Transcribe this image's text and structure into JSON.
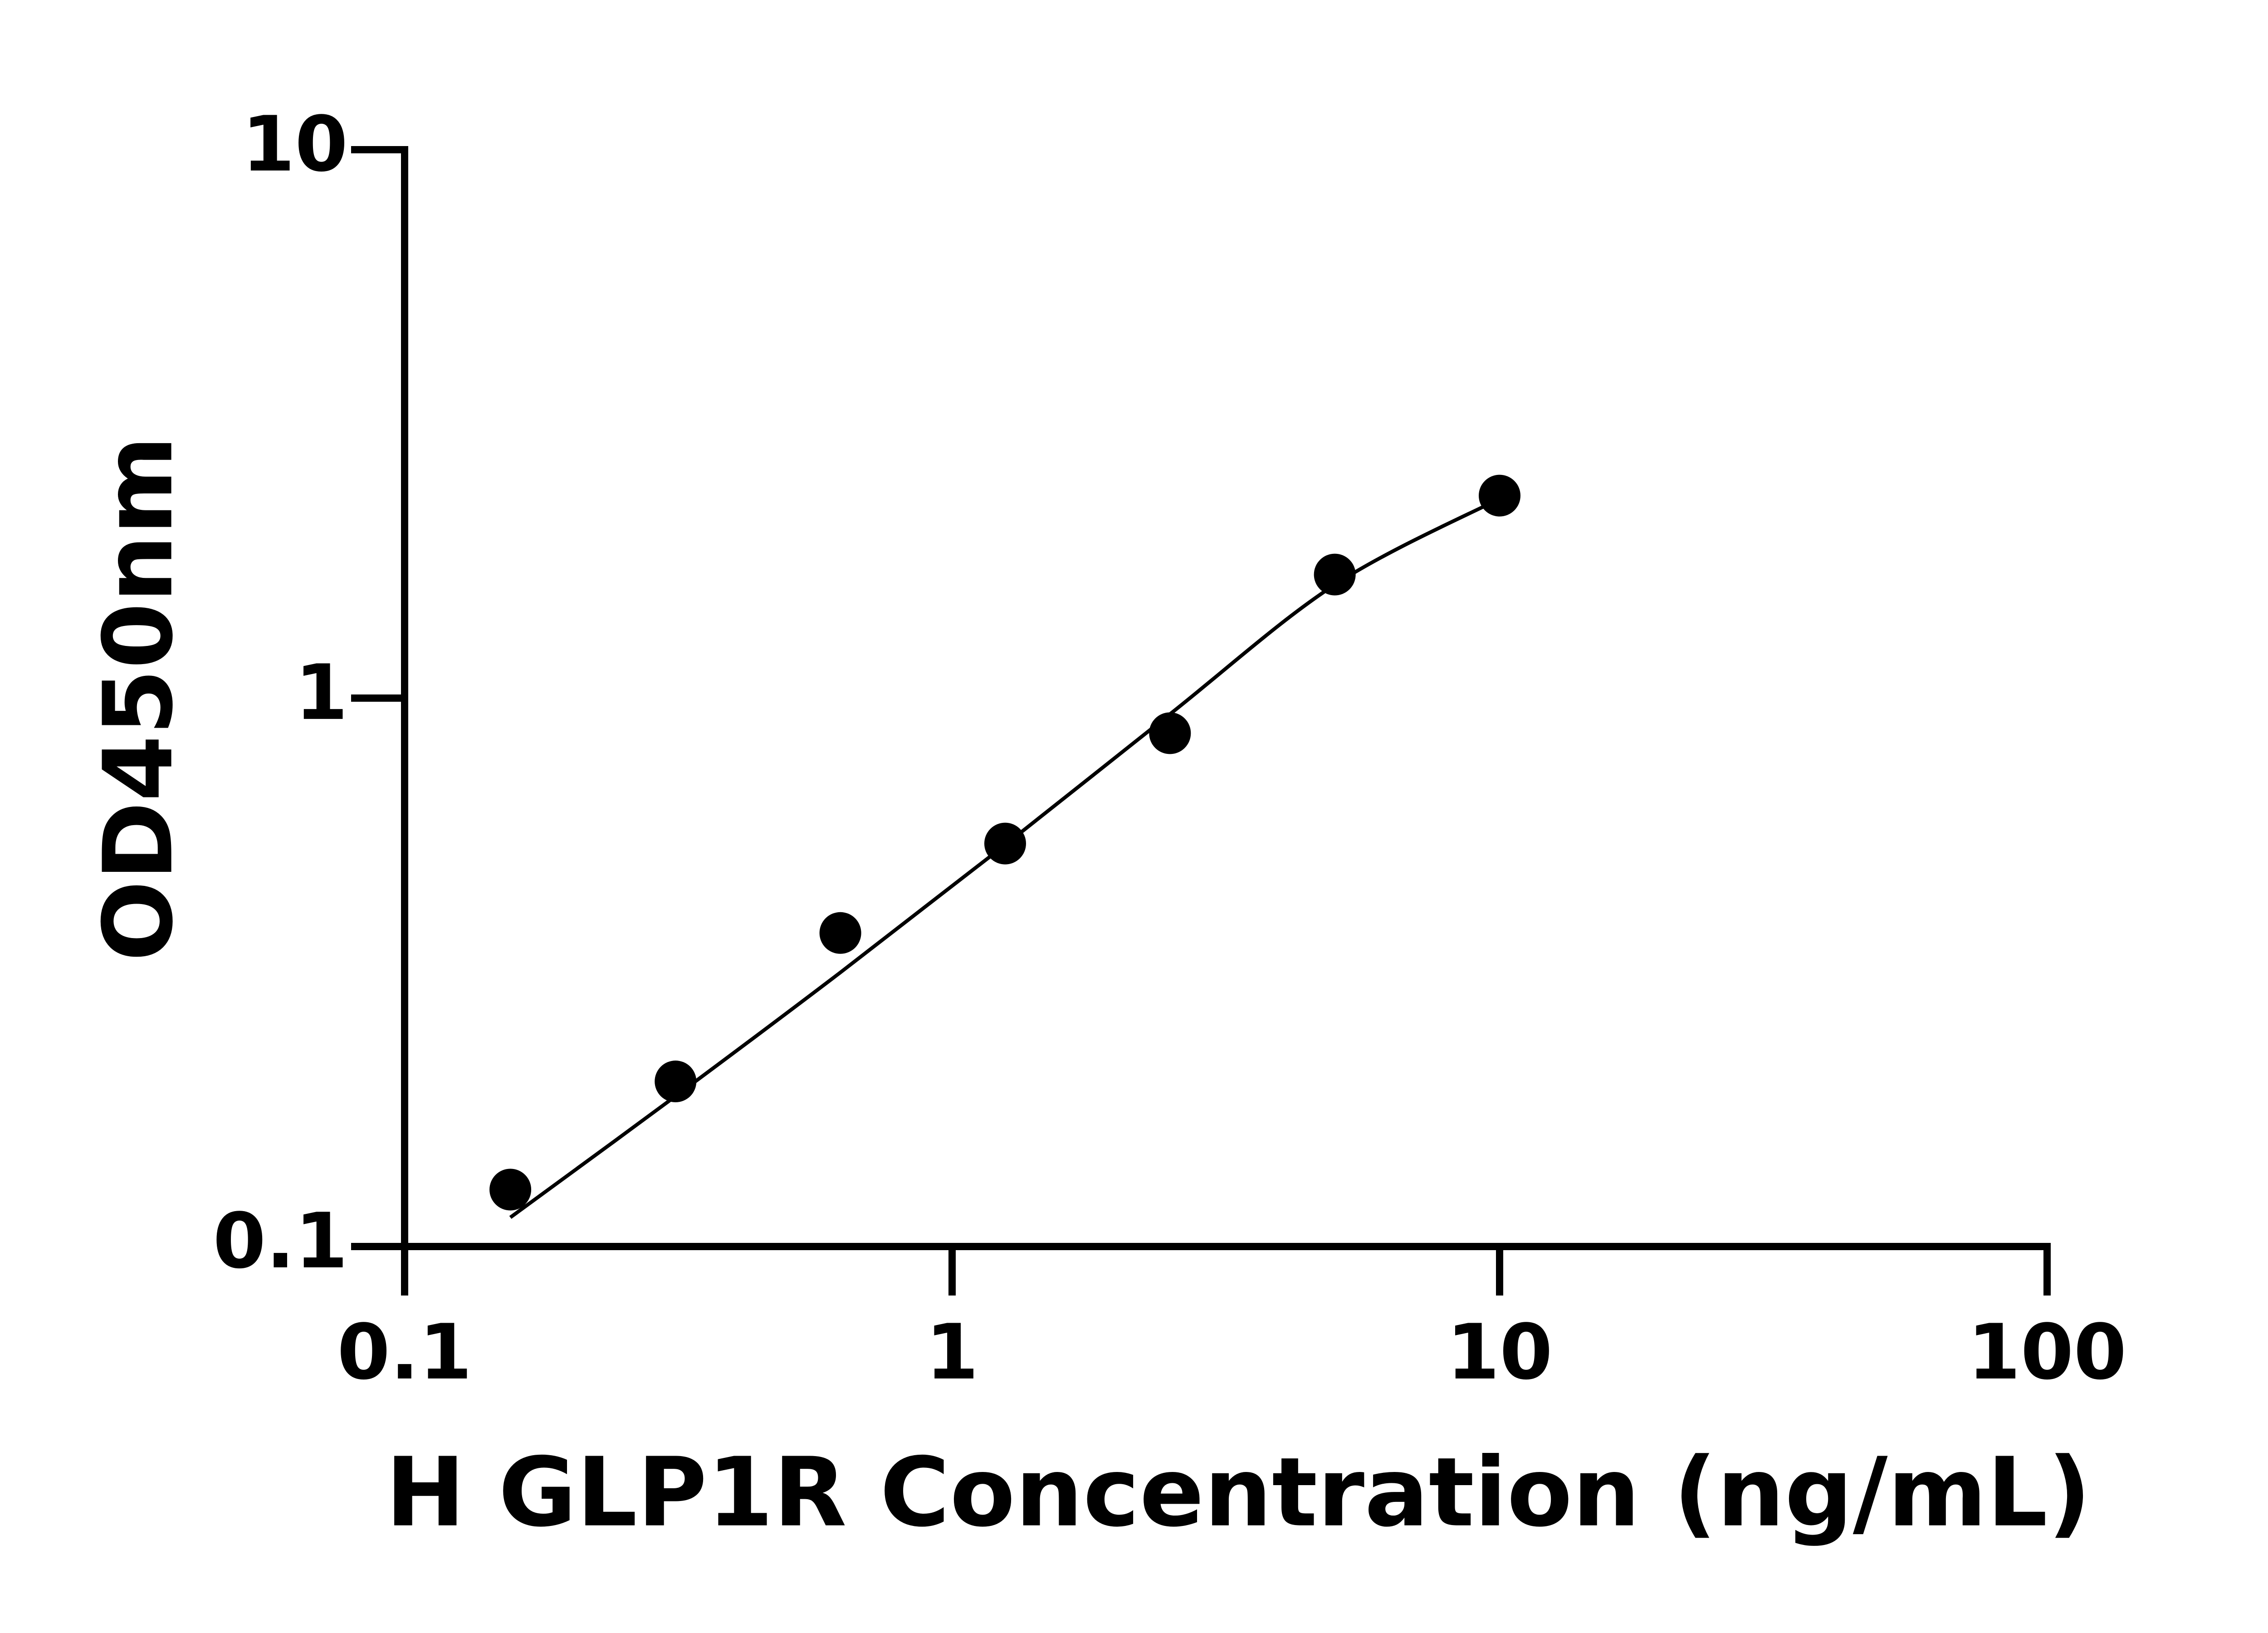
{
  "chart_data": {
    "type": "scatter",
    "x_label": "H GLP1R Concentration (ng/mL)",
    "y_label": "OD450nm",
    "series": [
      {
        "color": "#000000",
        "x": [
          0.156,
          0.3125,
          0.625,
          1.25,
          2.5,
          5,
          10
        ],
        "values": [
          0.127,
          0.2,
          0.373,
          0.543,
          0.863,
          1.68,
          2.34
        ]
      }
    ],
    "fit": {
      "color": "#000000",
      "x": [
        0.156,
        0.3125,
        0.625,
        1.25,
        2.5,
        5,
        10
      ],
      "values": [
        0.113,
        0.188,
        0.316,
        0.54,
        0.935,
        1.61,
        2.31
      ]
    },
    "xscale": "log",
    "yscale": "log",
    "xlim": [
      0.1,
      100
    ],
    "ylim": [
      0.1,
      10
    ],
    "xticks": [
      0.1,
      1,
      10,
      100
    ],
    "yticks": [
      0.1,
      1,
      10
    ],
    "grid": false
  }
}
